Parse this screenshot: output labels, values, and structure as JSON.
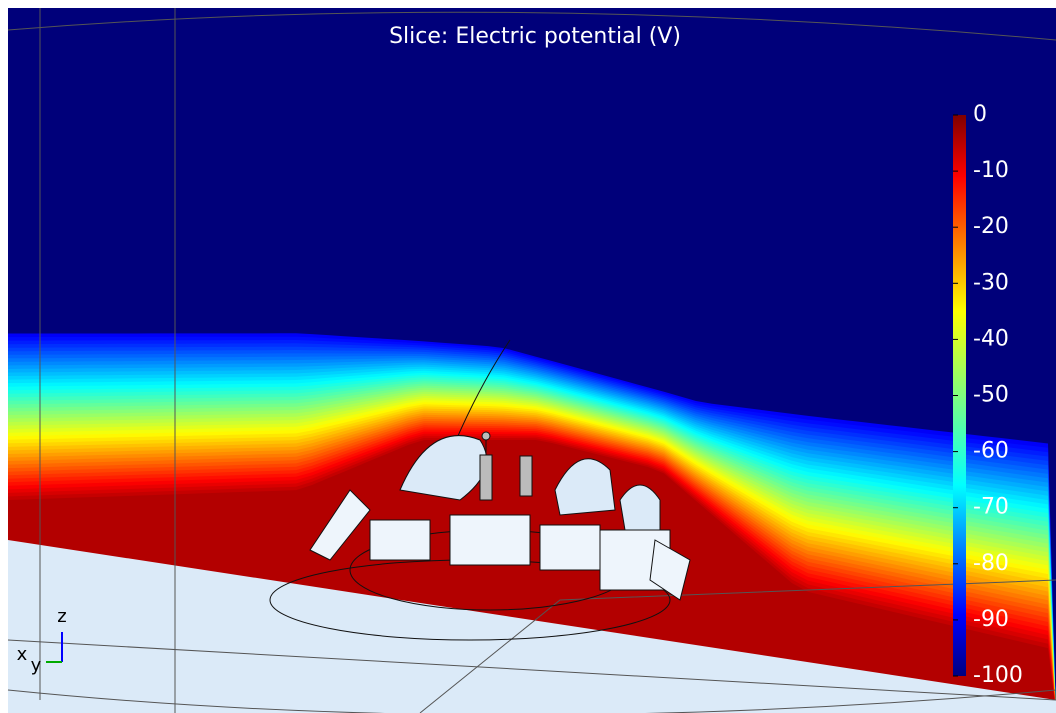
{
  "chart_data": {
    "type": "slice",
    "title": "Slice: Electric potential (V)",
    "colorbar": {
      "clim": [
        -100,
        0
      ],
      "ticks": [
        0,
        -10,
        -20,
        -30,
        -40,
        -50,
        -60,
        -70,
        -80,
        -90,
        -100
      ]
    },
    "axis_labels": {
      "z": "z",
      "x": "x",
      "y": "y"
    }
  }
}
